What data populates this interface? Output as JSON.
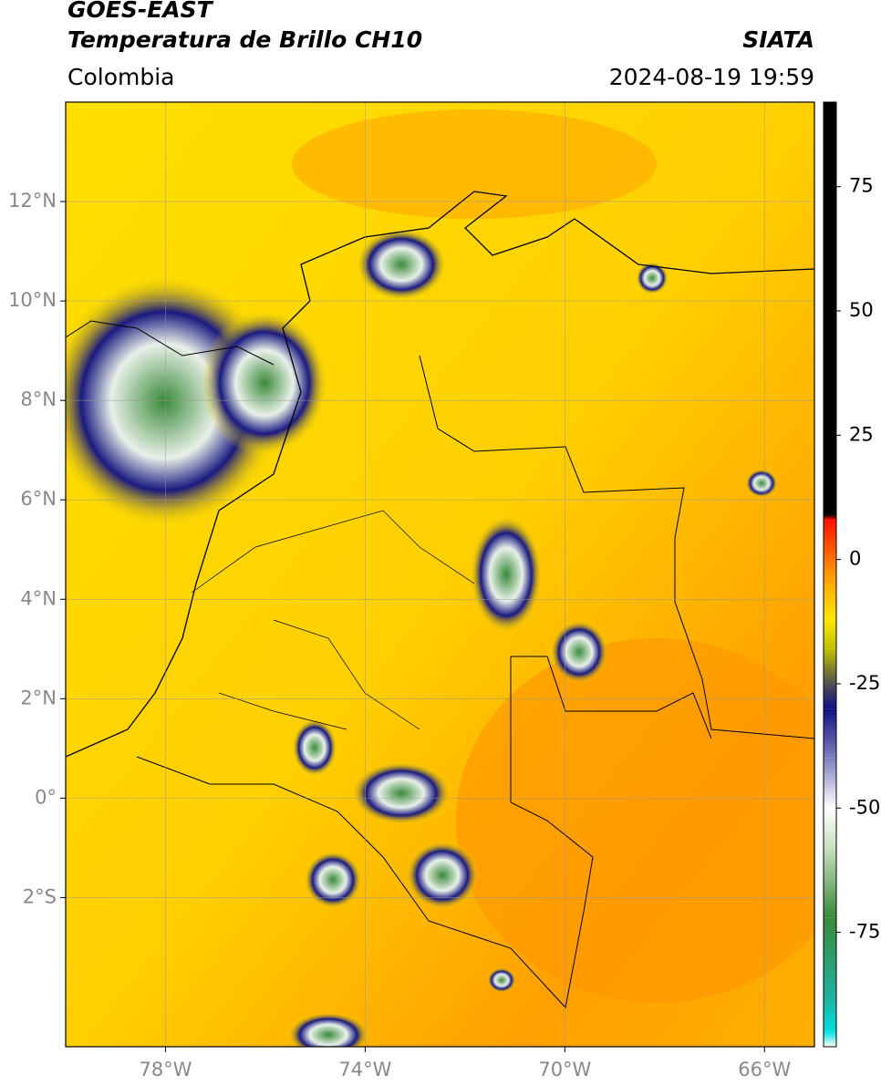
{
  "header": {
    "title": "GOES-EAST",
    "subtitle": "Temperatura de Brillo CH10",
    "region": "Colombia",
    "source": "SIATA",
    "datetime": "2024-08-19 19:59"
  },
  "map": {
    "xlim": [
      -80,
      -65
    ],
    "ylim": [
      -5,
      14
    ],
    "xticks": [
      {
        "value": -78,
        "label": "78°W"
      },
      {
        "value": -74,
        "label": "74°W"
      },
      {
        "value": -70,
        "label": "70°W"
      },
      {
        "value": -66,
        "label": "66°W"
      }
    ],
    "yticks": [
      {
        "value": 12,
        "label": "12°N"
      },
      {
        "value": 10,
        "label": "10°N"
      },
      {
        "value": 8,
        "label": "8°N"
      },
      {
        "value": 6,
        "label": "6°N"
      },
      {
        "value": 4,
        "label": "4°N"
      },
      {
        "value": 2,
        "label": "2°N"
      },
      {
        "value": 0,
        "label": "0°"
      },
      {
        "value": -2,
        "label": "2°S"
      }
    ],
    "grid": true
  },
  "colorbar": {
    "clim": [
      -98,
      92
    ],
    "ticks": [
      75,
      50,
      25,
      0,
      -25,
      -50,
      -75
    ],
    "stops": [
      {
        "value": -98,
        "color": "#ffffff"
      },
      {
        "value": -95,
        "color": "#00e0e0"
      },
      {
        "value": -88,
        "color": "#20b0a0"
      },
      {
        "value": -72,
        "color": "#3a8a3a"
      },
      {
        "value": -58,
        "color": "#c8e0c0"
      },
      {
        "value": -50,
        "color": "#ffffff"
      },
      {
        "value": -40,
        "color": "#8080c0"
      },
      {
        "value": -30,
        "color": "#101080"
      },
      {
        "value": -25,
        "color": "#505050"
      },
      {
        "value": -18,
        "color": "#c0c000"
      },
      {
        "value": -12,
        "color": "#ffe800"
      },
      {
        "value": -3,
        "color": "#ff9800"
      },
      {
        "value": 8,
        "color": "#ff1000"
      },
      {
        "value": 9,
        "color": "#000000"
      },
      {
        "value": 92,
        "color": "#000000"
      }
    ]
  }
}
